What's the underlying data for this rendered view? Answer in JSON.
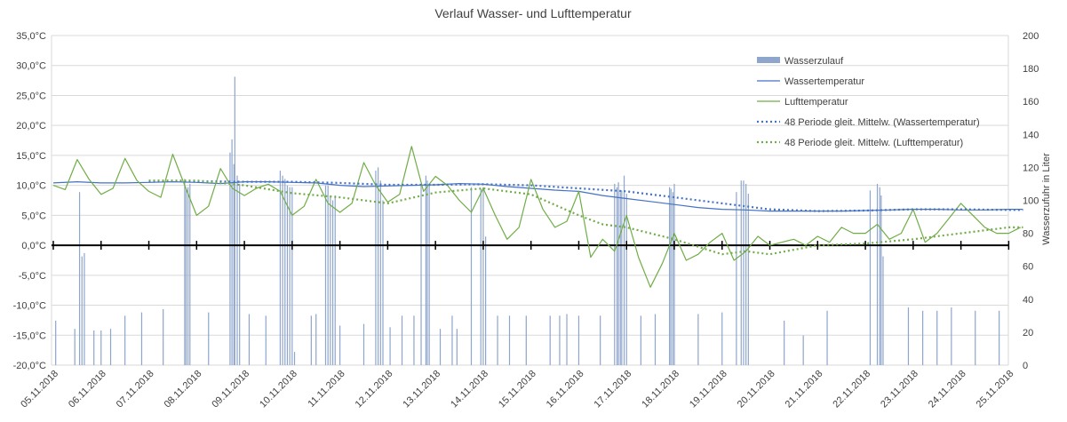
{
  "chart_data": {
    "type": "line",
    "title": "Verlauf Wasser- und Lufttemperatur",
    "xlabel": "",
    "ylabel": "",
    "y2label": "Wasserzufuhr in Liter",
    "ylim": [
      -20,
      35
    ],
    "y2lim": [
      0,
      200
    ],
    "y_ticks": [
      "35,0°C",
      "30,0°C",
      "25,0°C",
      "20,0°C",
      "15,0°C",
      "10,0°C",
      "5,0°C",
      "0,0°C",
      "-5,0°C",
      "-10,0°C",
      "-15,0°C",
      "-20,0°C"
    ],
    "y2_ticks": [
      "200",
      "180",
      "160",
      "140",
      "120",
      "100",
      "80",
      "60",
      "40",
      "20",
      "0"
    ],
    "x_ticks": [
      "05.11.2018",
      "06.11.2018",
      "07.11.2018",
      "08.11.2018",
      "09.11.2018",
      "10.11.2018",
      "11.11.2018",
      "12.11.2018",
      "13.11.2018",
      "14.11.2018",
      "15.11.2018",
      "16.11.2018",
      "17.11.2018",
      "18.11.2018",
      "19.11.2018",
      "20.11.2018",
      "21.11.2018",
      "22.11.2018",
      "23.11.2018",
      "24.11.2018",
      "25.11.2018"
    ],
    "grid": true,
    "legend_position": "top-right",
    "colors": {
      "bars": "#8ea5cc",
      "water": "#4472c4",
      "air": "#70ad47",
      "water_ma": "#4472c4",
      "air_ma": "#70ad47"
    },
    "legend": [
      {
        "key": "bars",
        "label": "Wasserzulauf"
      },
      {
        "key": "water",
        "label": "Wassertemperatur"
      },
      {
        "key": "air",
        "label": "Lufttemperatur"
      },
      {
        "key": "water_ma",
        "label": "48 Periode gleit. Mittelw. (Wassertemperatur)"
      },
      {
        "key": "air_ma",
        "label": "48 Periode gleit. Mittelw. (Lufttemperatur)"
      }
    ],
    "series": [
      {
        "name": "Wassertemperatur",
        "axis": "left",
        "x": [
          0,
          0.5,
          1,
          1.5,
          2,
          2.5,
          3,
          3.5,
          4,
          4.5,
          5,
          5.5,
          6,
          6.5,
          7,
          7.5,
          8,
          8.5,
          9,
          9.5,
          10,
          10.5,
          11,
          11.5,
          12,
          12.5,
          13,
          13.5,
          14,
          14.5,
          15,
          15.5,
          16,
          16.5,
          17,
          17.5,
          18,
          18.5,
          19,
          19.5,
          20,
          20.3
        ],
        "y": [
          10.4,
          10.6,
          10.4,
          10.4,
          10.5,
          10.6,
          10.5,
          10.3,
          10.6,
          10.6,
          10.5,
          10.4,
          10.0,
          9.8,
          9.9,
          10.0,
          10.1,
          10.3,
          10.2,
          9.8,
          9.5,
          9.2,
          9.0,
          8.3,
          7.8,
          7.3,
          6.8,
          6.3,
          6.0,
          5.9,
          5.7,
          5.7,
          5.7,
          5.7,
          5.8,
          5.9,
          6.0,
          6.0,
          5.9,
          5.9,
          6.0,
          6.0
        ]
      },
      {
        "name": "Lufttemperatur",
        "axis": "left",
        "x": [
          0,
          0.25,
          0.5,
          0.75,
          1,
          1.25,
          1.5,
          1.75,
          2,
          2.25,
          2.5,
          2.75,
          3,
          3.25,
          3.5,
          3.75,
          4,
          4.25,
          4.5,
          4.75,
          5,
          5.25,
          5.5,
          5.75,
          6,
          6.25,
          6.5,
          6.75,
          7,
          7.25,
          7.5,
          7.75,
          8,
          8.25,
          8.5,
          8.75,
          9,
          9.25,
          9.5,
          9.75,
          10,
          10.25,
          10.5,
          10.75,
          11,
          11.25,
          11.5,
          11.75,
          12,
          12.25,
          12.5,
          12.75,
          13,
          13.25,
          13.5,
          13.75,
          14,
          14.25,
          14.5,
          14.75,
          15,
          15.25,
          15.5,
          15.75,
          16,
          16.25,
          16.5,
          16.75,
          17,
          17.25,
          17.5,
          17.75,
          18,
          18.25,
          18.5,
          18.75,
          19,
          19.25,
          19.5,
          19.75,
          20,
          20.25
        ],
        "y": [
          10.0,
          9.3,
          14.3,
          11.0,
          8.5,
          9.5,
          14.5,
          10.8,
          9.0,
          8.0,
          15.2,
          10.0,
          5.0,
          6.5,
          12.8,
          9.5,
          8.3,
          9.5,
          10.2,
          9.0,
          5.0,
          6.5,
          11.0,
          7.0,
          5.5,
          7.0,
          13.8,
          10.0,
          7.2,
          8.5,
          16.5,
          9.0,
          11.5,
          10.0,
          7.5,
          5.5,
          9.5,
          5.0,
          1.0,
          3.0,
          11.0,
          6.0,
          3.0,
          4.0,
          9.0,
          -2.0,
          1.0,
          -1.0,
          5.0,
          -2.0,
          -7.0,
          -3.0,
          2.0,
          -2.5,
          -1.5,
          0.5,
          2.0,
          -2.5,
          -1.0,
          1.5,
          0.0,
          0.5,
          1.0,
          0.0,
          1.5,
          0.5,
          3.0,
          2.0,
          2.0,
          3.5,
          1.0,
          2.0,
          6.0,
          0.5,
          2.0,
          4.5,
          7.0,
          5.0,
          3.0,
          2.0,
          2.0,
          3.0
        ]
      },
      {
        "name": "48 Periode gleit. Mittelw. (Wassertemperatur)",
        "axis": "left",
        "x": [
          2,
          3,
          4,
          5,
          6,
          7,
          8,
          9,
          10,
          11,
          12,
          13,
          14,
          15,
          16,
          17,
          18,
          19,
          20,
          20.3
        ],
        "y": [
          10.7,
          10.7,
          10.6,
          10.6,
          10.4,
          10.1,
          10.1,
          10.2,
          10.0,
          9.5,
          9.0,
          8.0,
          7.0,
          6.0,
          5.7,
          5.8,
          6.0,
          6.0,
          5.9,
          5.9
        ]
      },
      {
        "name": "48 Periode gleit. Mittelw. (Lufttemperatur)",
        "axis": "left",
        "x": [
          2,
          3,
          4,
          5,
          6,
          7,
          8,
          9,
          10,
          11,
          11.5,
          12,
          13,
          14,
          14.5,
          15,
          16,
          17,
          18,
          19,
          20,
          20.3
        ],
        "y": [
          10.8,
          10.8,
          10.0,
          8.7,
          8.0,
          7.0,
          8.8,
          9.5,
          8.5,
          5.0,
          3.5,
          3.0,
          1.0,
          -1.5,
          -1.0,
          -1.5,
          0.0,
          0.3,
          1.0,
          2.0,
          3.0,
          3.0
        ]
      }
    ],
    "bars": {
      "name": "Wasserzulauf",
      "axis": "right",
      "x": [
        0.05,
        0.45,
        0.55,
        0.6,
        0.65,
        0.85,
        1.0,
        1.2,
        1.5,
        1.85,
        2.3,
        2.75,
        2.78,
        2.82,
        2.86,
        3.25,
        3.7,
        3.74,
        3.78,
        3.8,
        3.85,
        3.9,
        4.1,
        4.45,
        4.75,
        4.8,
        4.85,
        4.9,
        4.95,
        5.0,
        5.05,
        5.4,
        5.5,
        5.7,
        5.75,
        5.8,
        5.85,
        5.9,
        6.0,
        6.5,
        6.75,
        6.8,
        6.85,
        6.9,
        7.05,
        7.3,
        7.55,
        7.7,
        7.8,
        7.83,
        7.87,
        8.1,
        8.35,
        8.45,
        8.75,
        8.95,
        9.0,
        9.05,
        9.3,
        9.55,
        9.9,
        10.4,
        10.6,
        10.75,
        11.0,
        11.45,
        11.75,
        11.8,
        11.83,
        11.87,
        11.9,
        11.95,
        12.0,
        12.3,
        12.6,
        12.9,
        12.93,
        12.97,
        13.0,
        13.5,
        14.0,
        14.3,
        14.4,
        14.45,
        14.5,
        14.55,
        15.3,
        15.7,
        16.2,
        17.1,
        17.25,
        17.3,
        17.33,
        17.37,
        17.9,
        18.2,
        18.5,
        18.8,
        19.3,
        19.8
      ],
      "values": [
        27,
        22,
        105,
        66,
        68,
        21,
        21,
        22,
        30,
        32,
        34,
        113,
        107,
        108,
        110,
        32,
        129,
        137,
        122,
        175,
        115,
        110,
        31,
        30,
        118,
        115,
        113,
        109,
        108,
        108,
        8,
        30,
        31,
        109,
        109,
        103,
        100,
        103,
        24,
        25,
        118,
        120,
        112,
        100,
        23,
        30,
        30,
        110,
        115,
        112,
        110,
        22,
        30,
        22,
        108,
        107,
        108,
        78,
        30,
        30,
        30,
        30,
        30,
        31,
        30,
        30,
        110,
        108,
        111,
        105,
        106,
        115,
        104,
        30,
        31,
        108,
        107,
        105,
        110,
        31,
        32,
        105,
        112,
        112,
        110,
        104,
        27,
        18,
        33,
        106,
        110,
        108,
        103,
        66,
        35,
        33,
        33,
        35,
        33,
        33
      ]
    }
  }
}
